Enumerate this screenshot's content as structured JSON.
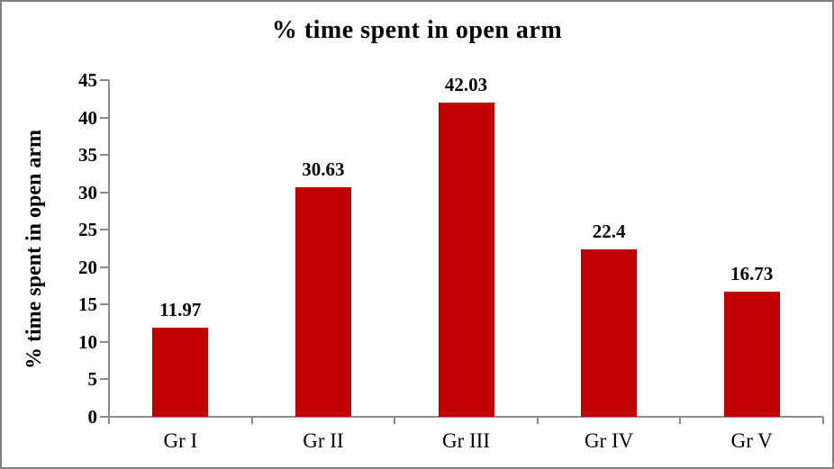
{
  "frame": {
    "background": "#FFFFFF",
    "border_color": "#7F7F7F"
  },
  "chart_data": {
    "type": "bar",
    "title": "% time spent in open arm",
    "ylabel": "% time spent in open arm",
    "xlabel": "",
    "categories": [
      "Gr I",
      "Gr II",
      "Gr III",
      "Gr IV",
      "Gr V"
    ],
    "values": [
      11.97,
      30.63,
      42.03,
      22.4,
      16.73
    ],
    "data_labels": [
      "11.97",
      "30.63",
      "42.03",
      "22.4",
      "16.73"
    ],
    "ylim": [
      0,
      45
    ],
    "ytick_step": 5,
    "yticks": [
      0,
      5,
      10,
      15,
      20,
      25,
      30,
      35,
      40,
      45
    ],
    "grid": false,
    "legend": "none",
    "bar_color": "#C00000",
    "axis_color": "#8C8C8C",
    "text_color": "#000000"
  }
}
